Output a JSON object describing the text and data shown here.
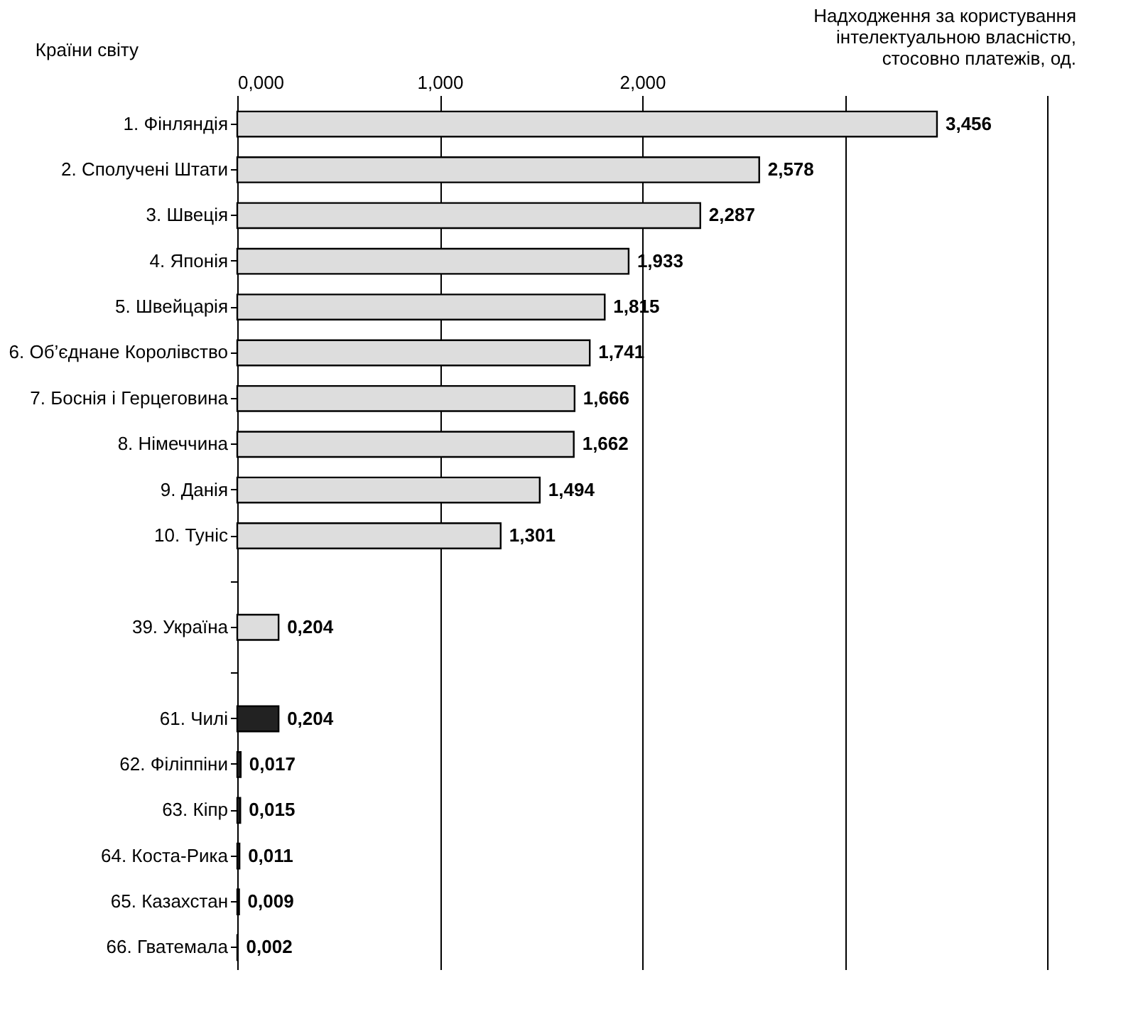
{
  "chart_data": {
    "type": "bar",
    "orientation": "horizontal",
    "xlabel": "Надходження за користування інтелектуальною власністю, стосовно платежів, од.",
    "ylabel": "Країни світу",
    "categories": [
      "1. Фінляндія",
      "2. Сполучені Штати",
      "3. Швеція",
      "4. Японія",
      "5. Швейцарія",
      "6. Об’єднане Королівство",
      "7. Боснія і Герцеговина",
      "8. Німеччина",
      "9. Данія",
      "10. Туніс",
      null,
      "39. Україна",
      null,
      "61. Чилі",
      "62. Філіппіни",
      "63. Кіпр",
      "64. Коста-Рика",
      "65. Казахстан",
      "66. Гватемала"
    ],
    "values": [
      3.456,
      2.578,
      2.287,
      1.933,
      1.815,
      1.741,
      1.666,
      1.662,
      1.494,
      1.301,
      null,
      0.204,
      null,
      0.204,
      0.017,
      0.015,
      0.011,
      0.009,
      0.002
    ],
    "value_labels": [
      "3,456",
      "2,578",
      "2,287",
      "1,933",
      "1,815",
      "1,741",
      "1,666",
      "1,662",
      "1,494",
      "1,301",
      null,
      "0,204",
      null,
      "0,204",
      "0,017",
      "0,015",
      "0,011",
      "0,009",
      "0,002"
    ],
    "colors": [
      "#dddddd",
      "#dddddd",
      "#dddddd",
      "#dddddd",
      "#dddddd",
      "#dddddd",
      "#dddddd",
      "#dddddd",
      "#dddddd",
      "#dddddd",
      "#dddddd",
      "#dddddd",
      "#dddddd",
      "#222222",
      "#222222",
      "#222222",
      "#222222",
      "#222222",
      "#222222"
    ],
    "xlim": [
      0,
      4
    ],
    "xticks": [
      {
        "value": 0,
        "label": "0,000"
      },
      {
        "value": 1,
        "label": "1,000"
      },
      {
        "value": 2,
        "label": "2,000"
      },
      {
        "value": 3,
        "label": null
      },
      {
        "value": 4,
        "label": null
      }
    ],
    "grid": "x"
  }
}
